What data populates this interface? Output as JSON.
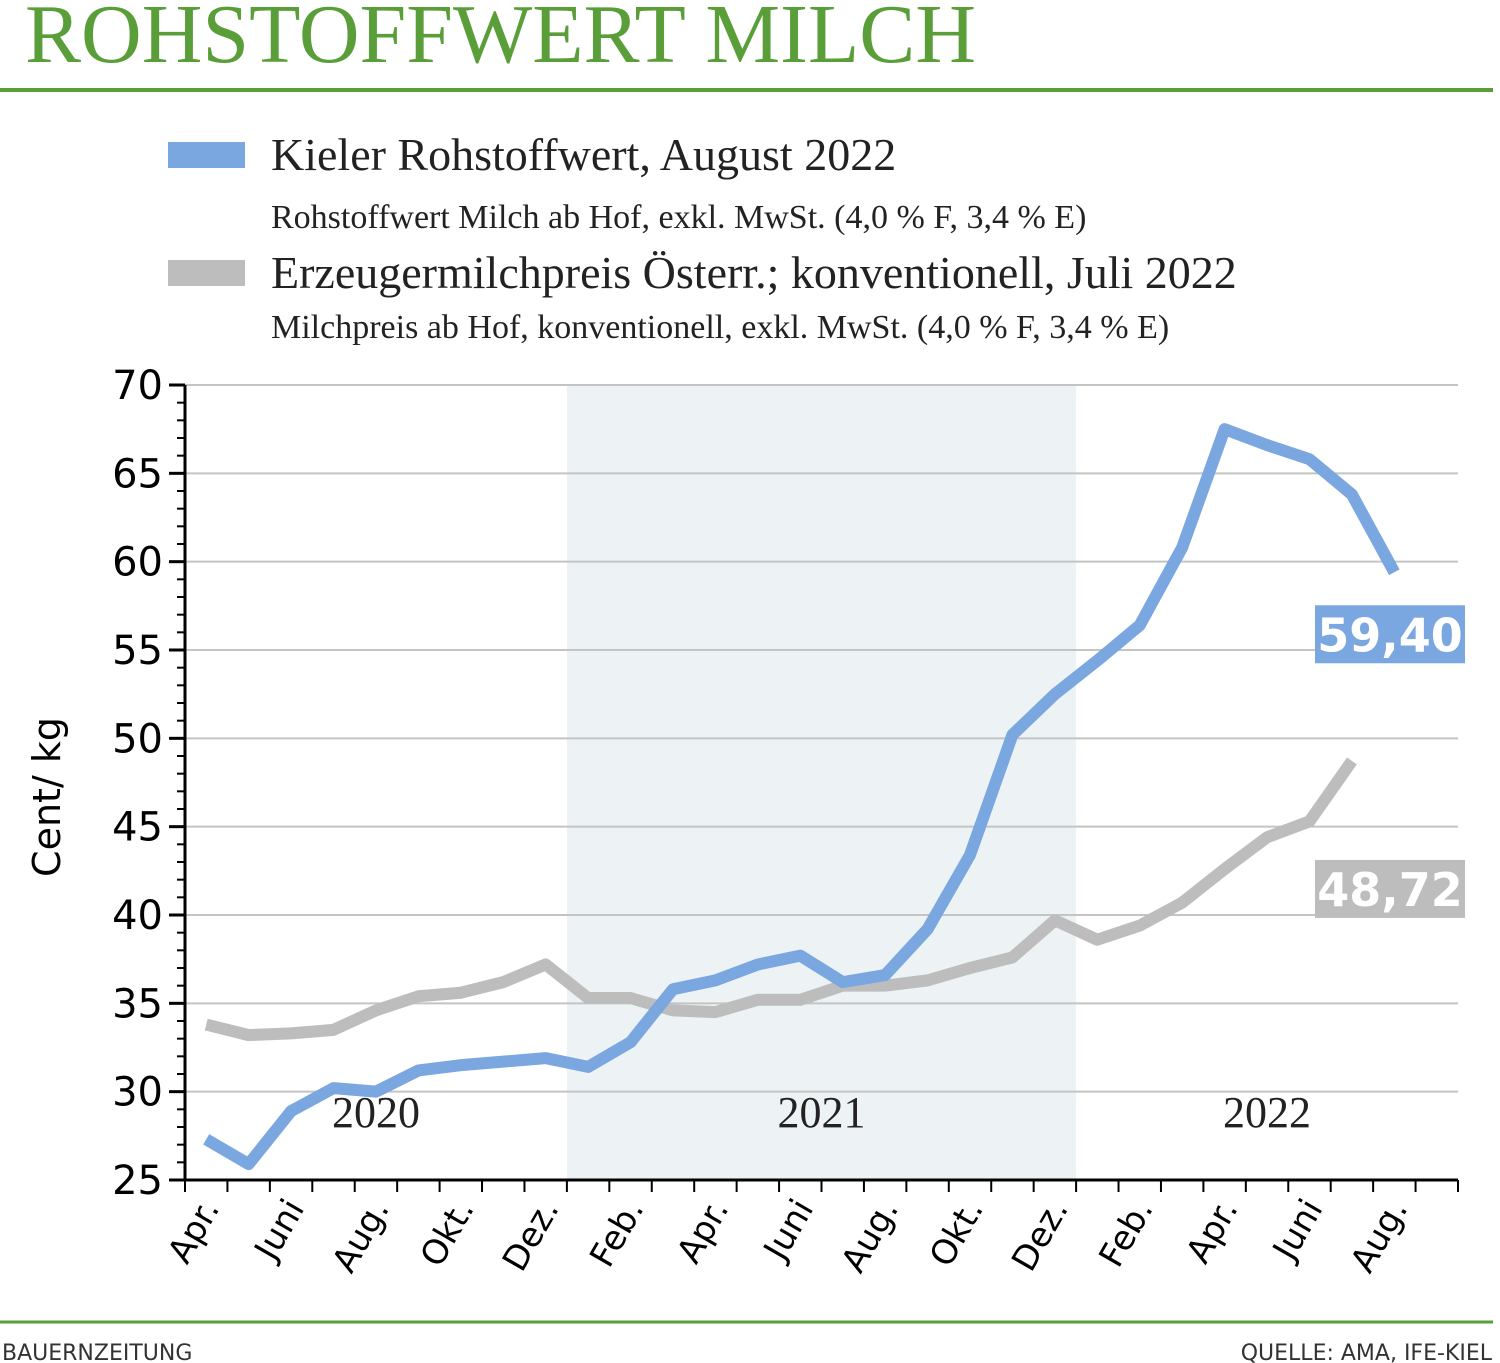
{
  "chart_data": {
    "type": "line",
    "title": "ROHSTOFFWERT MILCH",
    "y_label": "Cent/ kg",
    "categories": [
      "Apr.",
      null,
      "Juni",
      null,
      "Aug.",
      null,
      "Okt.",
      null,
      "Dez.",
      null,
      "Feb.",
      null,
      "Apr.",
      null,
      "Juni",
      null,
      "Aug.",
      null,
      "Okt.",
      null,
      "Dez.",
      null,
      "Feb.",
      null,
      "Apr.",
      null,
      "Juni",
      null,
      "Aug.",
      null
    ],
    "years": [
      "2020",
      "2021",
      "2022"
    ],
    "series": [
      {
        "name": "Kieler Rohstoffwert, August 2022",
        "description": "Rohstoffwert Milch ab Hof, exkl. MwSt. (4,0 % F, 3,4 % E)",
        "color": "#7ba7e0",
        "values": [
          27.3,
          25.9,
          28.9,
          30.2,
          30.0,
          31.2,
          31.5,
          31.7,
          31.9,
          31.4,
          32.8,
          35.8,
          36.3,
          37.2,
          37.7,
          36.2,
          36.6,
          39.2,
          43.4,
          50.2,
          52.5,
          54.4,
          56.4,
          60.8,
          67.5,
          66.6,
          65.8,
          63.8,
          59.4,
          null
        ],
        "value_labels": [
          null,
          null,
          null,
          null,
          null,
          null,
          null,
          null,
          null,
          null,
          null,
          null,
          null,
          null,
          null,
          null,
          null,
          null,
          null,
          null,
          null,
          null,
          null,
          null,
          null,
          null,
          null,
          null,
          "59,40",
          null
        ]
      },
      {
        "name": "Erzeugermilchpreis Österr.; konventionell, Juli 2022",
        "description": "Milchpreis ab Hof, konventionell, exkl. MwSt. (4,0 % F, 3,4 % E)",
        "color": "#bdbdbd",
        "values": [
          33.8,
          33.2,
          33.3,
          33.5,
          34.6,
          35.4,
          35.6,
          36.2,
          37.2,
          35.3,
          35.3,
          34.6,
          34.5,
          35.2,
          35.2,
          36.0,
          36.0,
          36.3,
          37.0,
          37.6,
          39.7,
          38.6,
          39.4,
          40.7,
          42.6,
          44.4,
          45.3,
          48.72,
          null,
          null
        ],
        "value_labels": [
          null,
          null,
          null,
          null,
          null,
          null,
          null,
          null,
          null,
          null,
          null,
          null,
          null,
          null,
          null,
          null,
          null,
          null,
          null,
          null,
          null,
          null,
          null,
          null,
          null,
          null,
          null,
          "48,72",
          null,
          null
        ]
      }
    ],
    "ylim": [
      25,
      70
    ],
    "yticks": [
      25,
      30,
      35,
      40,
      45,
      50,
      55,
      60,
      65,
      70
    ],
    "grid": true,
    "footer_left": "BAUERNZEITUNG",
    "footer_right": "QUELLE: AMA, IFE-KIEL"
  }
}
